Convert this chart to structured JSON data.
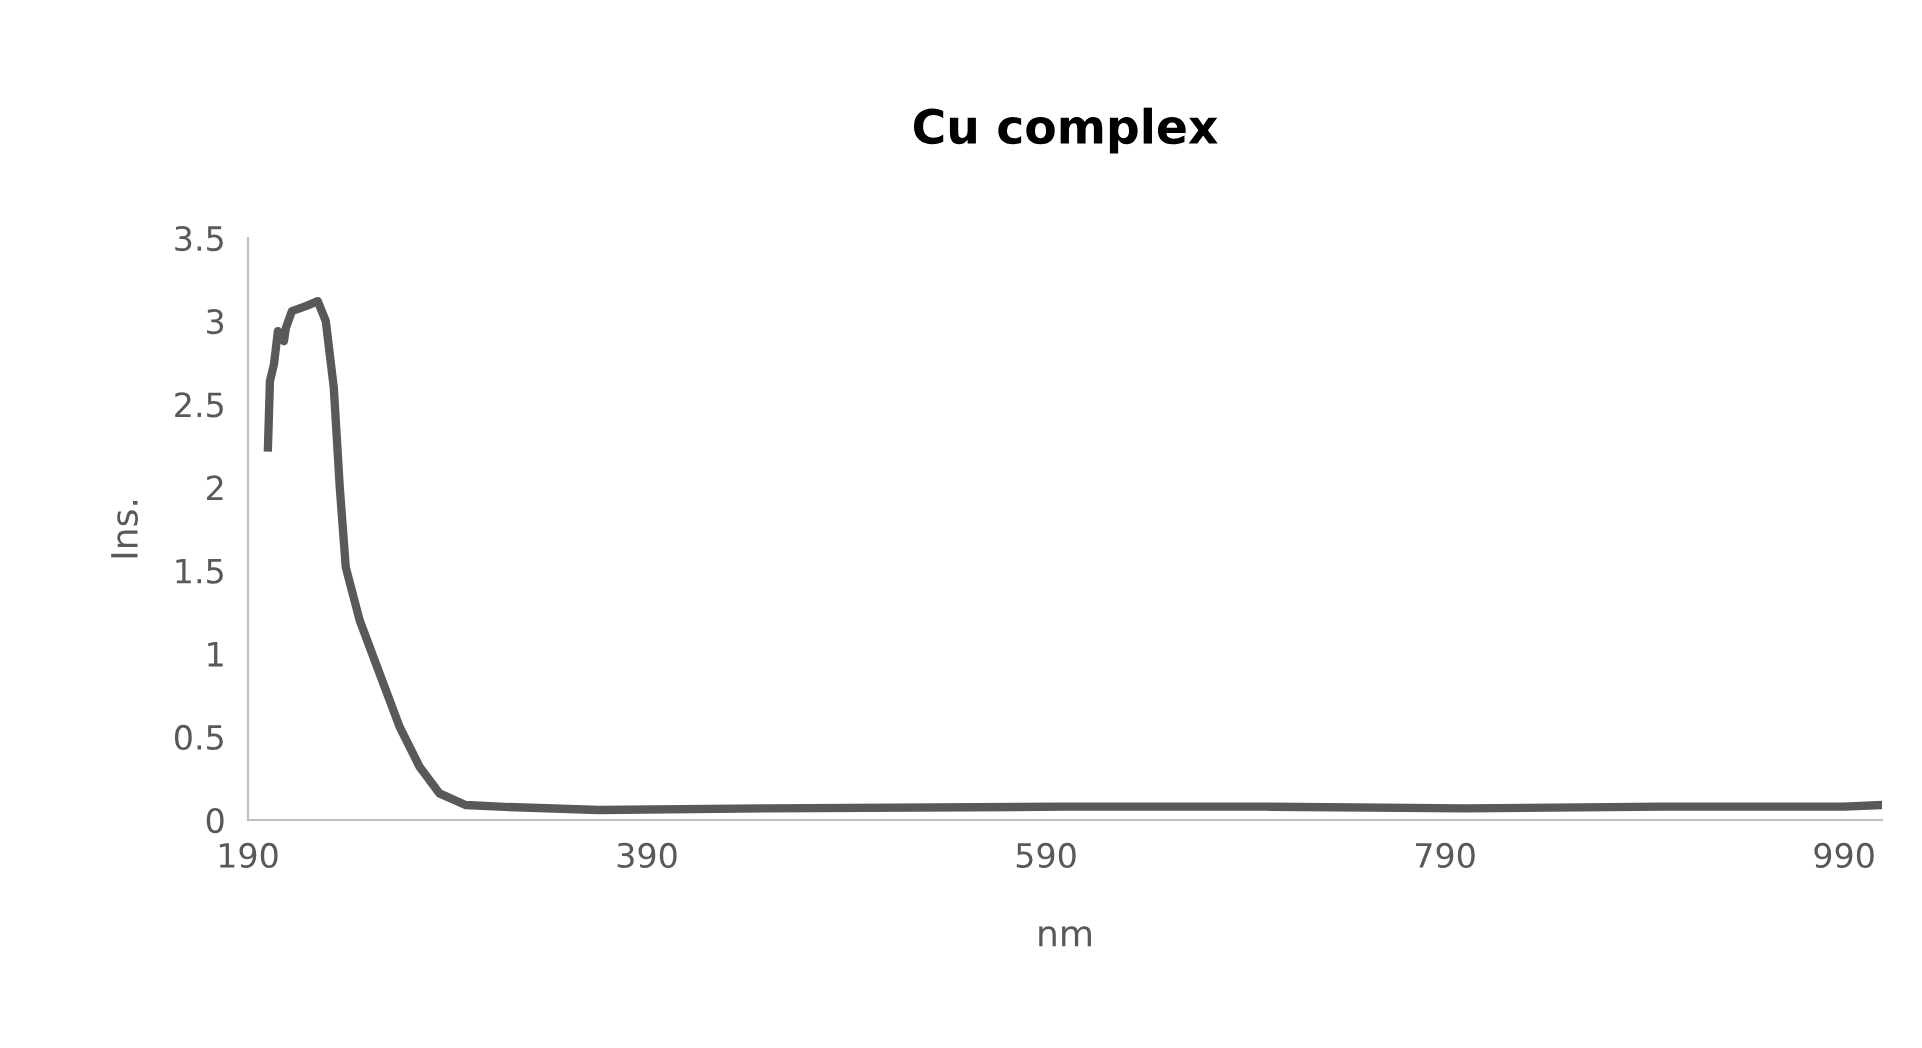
{
  "chart_data": {
    "type": "line",
    "title": "Cu complex",
    "xlabel": "nm",
    "ylabel": "Ins.",
    "x": [
      200,
      201,
      203,
      205,
      208,
      209,
      212,
      219,
      225,
      229,
      233,
      236,
      239,
      246,
      256,
      266,
      276,
      286,
      299,
      316,
      366,
      450,
      600,
      700,
      800,
      900,
      990,
      1009
    ],
    "series": [
      {
        "color": "#595959",
        "values": [
          2.24,
          2.64,
          2.74,
          2.94,
          2.88,
          2.96,
          3.06,
          3.09,
          3.12,
          3.0,
          2.6,
          2.0,
          1.52,
          1.2,
          0.88,
          0.56,
          0.32,
          0.16,
          0.09,
          0.08,
          0.06,
          0.07,
          0.08,
          0.08,
          0.07,
          0.08,
          0.08,
          0.09
        ]
      }
    ],
    "xlim": [
      190,
      1009
    ],
    "xticks": [
      190,
      390,
      590,
      790,
      990
    ],
    "ylim": [
      0,
      3.5
    ],
    "yticks": [
      0,
      0.5,
      1,
      1.5,
      2,
      2.5,
      3,
      3.5
    ],
    "grid": false,
    "marker": "none",
    "line_style": "solid"
  }
}
